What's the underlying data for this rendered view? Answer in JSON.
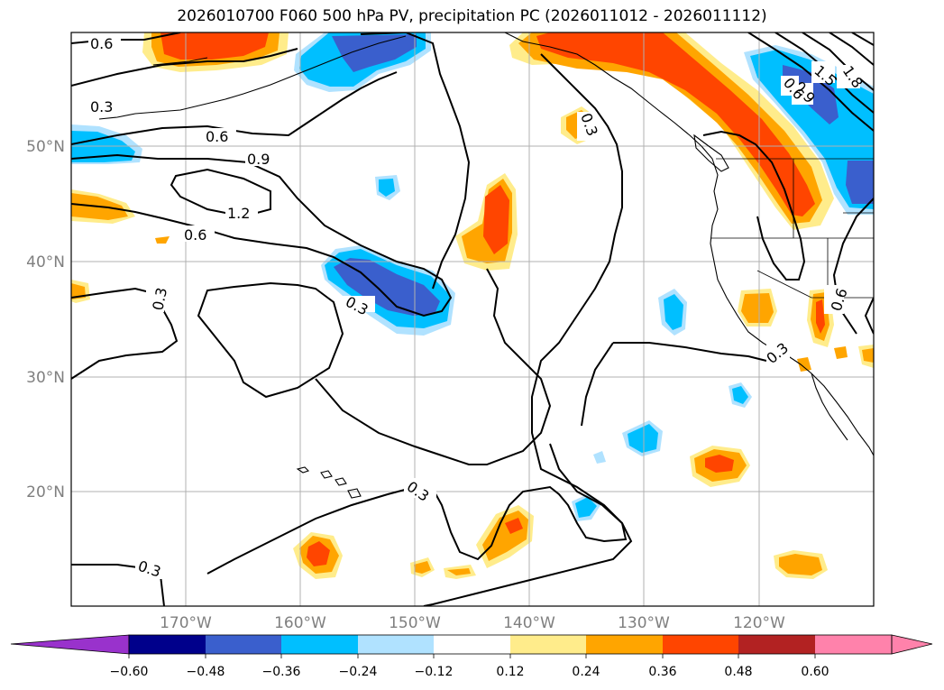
{
  "title": "2026010700 F060 500 hPa PV, precipitation PC (2026011012 - 2026011112)",
  "lat_labels": [
    "50°N",
    "40°N",
    "30°N",
    "20°N"
  ],
  "lon_labels": [
    "170°W",
    "160°W",
    "150°W",
    "140°W",
    "130°W",
    "120°W"
  ],
  "contour_labels": [
    "0.6",
    "0.3",
    "0.6",
    "0.9",
    "1.2",
    "0.6",
    "0.3",
    "0.3",
    "0.3",
    "0.3",
    "0.3",
    "0.6",
    "0.3",
    "1.5",
    "1.8",
    "0.9",
    "0.6"
  ],
  "colorbar": {
    "ticks": [
      "−0.60",
      "−0.48",
      "−0.36",
      "−0.24",
      "−0.12",
      "0.12",
      "0.24",
      "0.36",
      "0.48",
      "0.60"
    ],
    "colors": [
      "#9932cc",
      "#00008b",
      "#3a5fcd",
      "#00bfff",
      "#b0e2ff",
      "#ffffff",
      "#ffec8b",
      "#ffa500",
      "#ff4500",
      "#b22222",
      "#ff82ab",
      "#ff82ab"
    ]
  },
  "colors": {
    "neg_strong": "#3a5fcd",
    "neg_mid": "#00bfff",
    "neg_weak": "#b0e2ff",
    "pos_weak": "#ffec8b",
    "pos_mid": "#ffa500",
    "pos_strong": "#ff4500"
  }
}
